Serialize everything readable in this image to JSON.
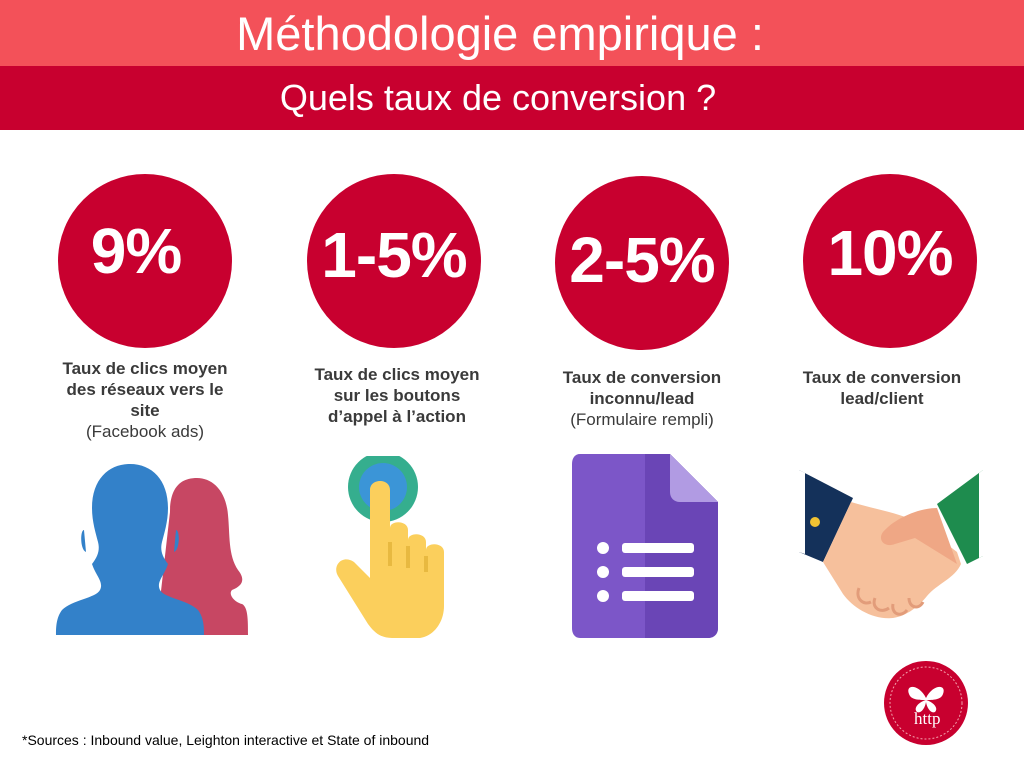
{
  "header": {
    "title": "Méthodologie empirique :",
    "subtitle": "Quels taux de conversion ?"
  },
  "colors": {
    "header_light": "#f35159",
    "accent": "#c8002f",
    "text": "#3a3a3a"
  },
  "stats": [
    {
      "value": "9%",
      "caption": "Taux de clics moyen des réseaux vers le site",
      "detail": "(Facebook ads)",
      "icon": "users-icon"
    },
    {
      "value": "1-5%",
      "caption": "Taux de clics moyen sur les boutons d’appel à l’action",
      "detail": "",
      "icon": "tap-hand-icon"
    },
    {
      "value": "2-5%",
      "caption": "Taux de conversion inconnu/lead",
      "detail": "(Formulaire rempli)",
      "icon": "form-document-icon"
    },
    {
      "value": "10%",
      "caption": "Taux de conversion lead/client",
      "detail": "",
      "icon": "handshake-icon"
    }
  ],
  "footnote": "*Sources : Inbound value, Leighton interactive et State of inbound",
  "logo": {
    "text": "http",
    "icon": "butterfly-logo-icon"
  }
}
